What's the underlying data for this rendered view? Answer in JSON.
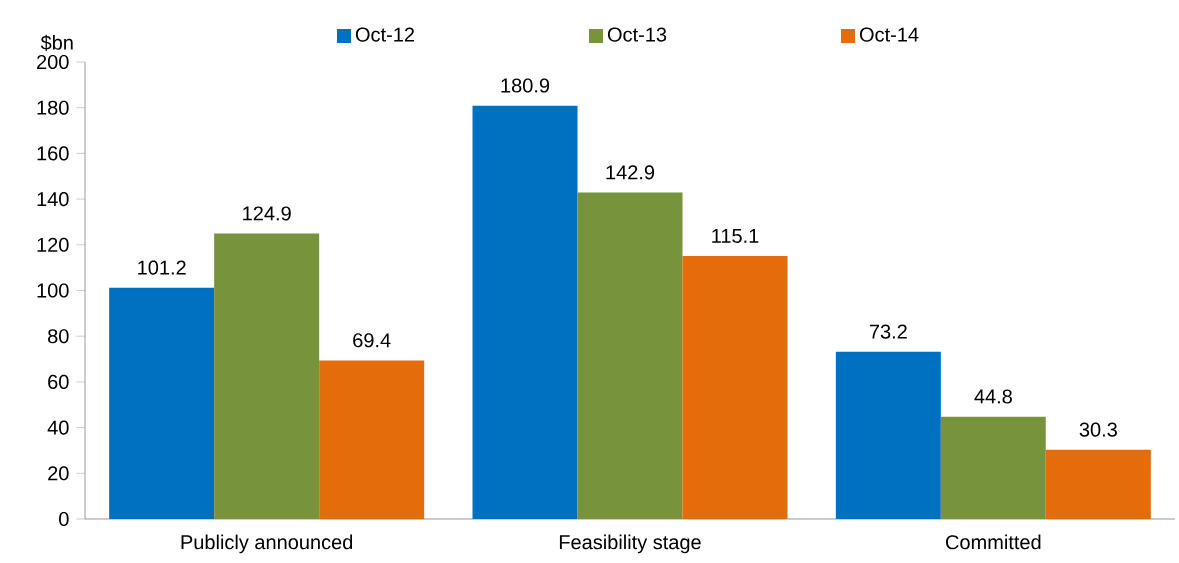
{
  "chart_data": {
    "type": "bar",
    "ylabel": "$bn",
    "categories": [
      "Publicly announced",
      "Feasibility stage",
      "Committed"
    ],
    "series": [
      {
        "name": "Oct-12",
        "color": "#0070c0",
        "values": [
          101.2,
          180.9,
          73.2
        ]
      },
      {
        "name": "Oct-13",
        "color": "#77933c",
        "values": [
          124.9,
          142.9,
          44.8
        ]
      },
      {
        "name": "Oct-14",
        "color": "#e46c0a",
        "values": [
          69.4,
          115.1,
          30.3
        ]
      }
    ],
    "ylim": [
      0,
      200
    ],
    "yticks": [
      0,
      20,
      40,
      60,
      80,
      100,
      120,
      140,
      160,
      180,
      200
    ],
    "data_labels": true,
    "grid": false,
    "legend": "top"
  }
}
